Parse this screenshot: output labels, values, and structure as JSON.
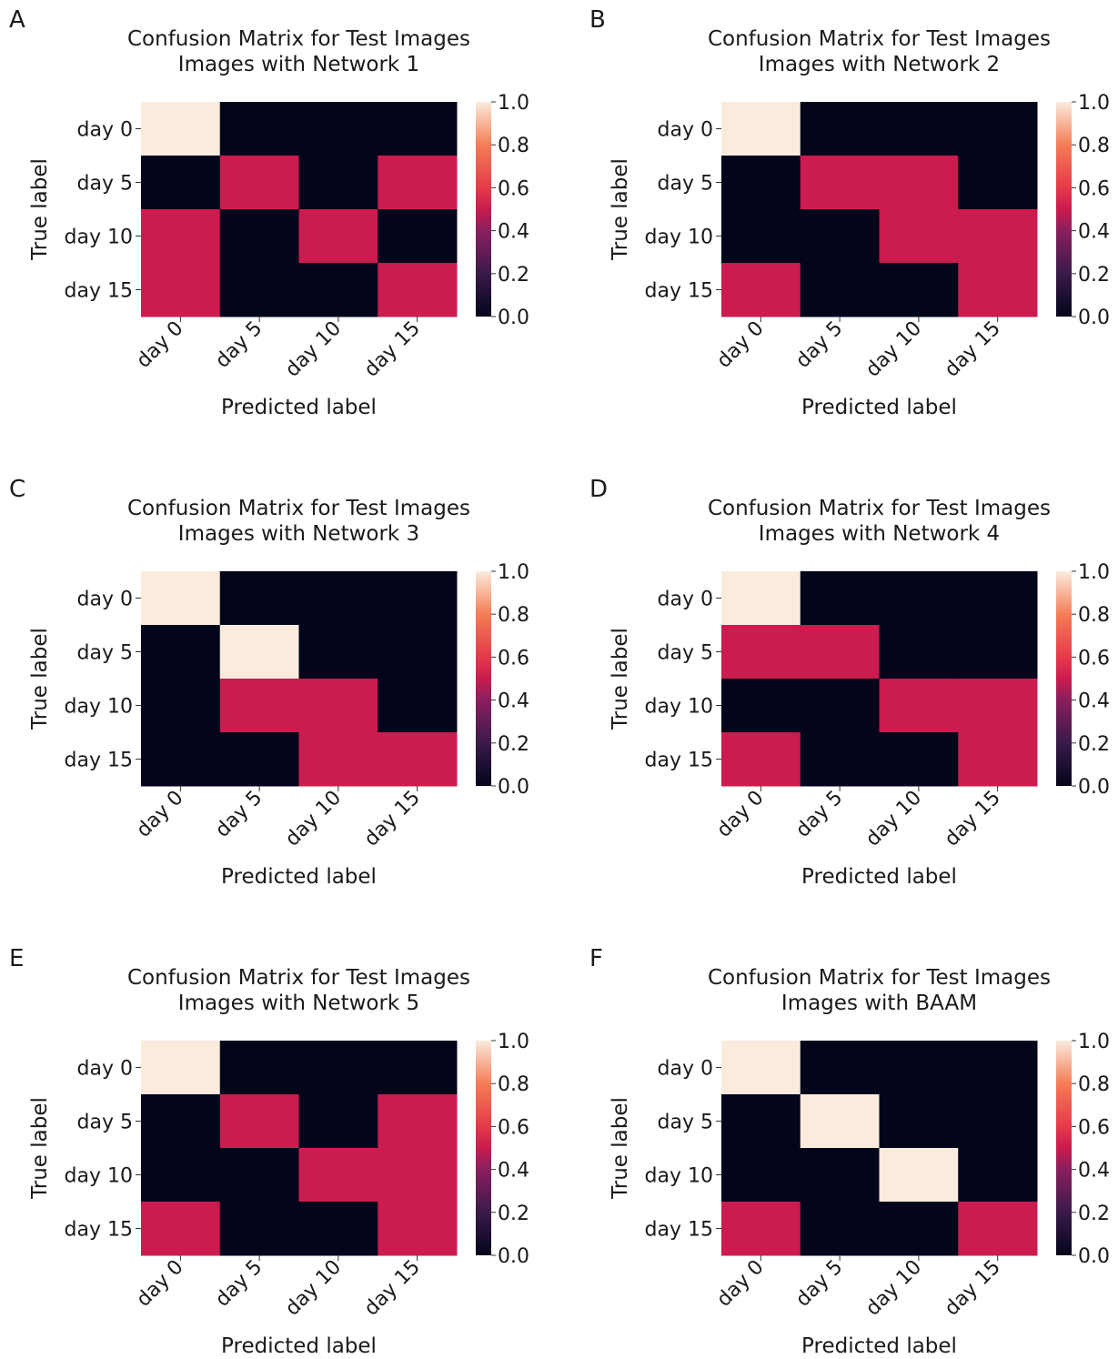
{
  "colormap": {
    "name": "rocket",
    "stops": [
      {
        "v": 0.0,
        "color": "#03051a"
      },
      {
        "v": 0.2,
        "color": "#3a1a4a"
      },
      {
        "v": 0.4,
        "color": "#8a1f5e"
      },
      {
        "v": 0.5,
        "color": "#cb1b4f"
      },
      {
        "v": 0.6,
        "color": "#e6394a"
      },
      {
        "v": 0.8,
        "color": "#f47d55"
      },
      {
        "v": 1.0,
        "color": "#faebdd"
      }
    ]
  },
  "chart_data": [
    {
      "panel": "A",
      "type": "heatmap",
      "title": [
        "Confusion Matrix for Test Images",
        "Images with Network 1"
      ],
      "xlabel": "Predicted label",
      "ylabel": "True label",
      "x_categories": [
        "day 0",
        "day 5",
        "day 10",
        "day 15"
      ],
      "y_categories": [
        "day 0",
        "day 5",
        "day 10",
        "day 15"
      ],
      "colorbar": {
        "ticks": [
          "0.0",
          "0.2",
          "0.4",
          "0.6",
          "0.8",
          "1.0"
        ],
        "range": [
          0,
          1
        ]
      },
      "values": [
        [
          1,
          0,
          0,
          0
        ],
        [
          0,
          0.5,
          0,
          0.5
        ],
        [
          0.5,
          0,
          0.5,
          0
        ],
        [
          0.5,
          0,
          0,
          0.5
        ]
      ]
    },
    {
      "panel": "B",
      "type": "heatmap",
      "title": [
        "Confusion Matrix for Test Images",
        "Images with Network 2"
      ],
      "xlabel": "Predicted label",
      "ylabel": "True label",
      "x_categories": [
        "day 0",
        "day 5",
        "day 10",
        "day 15"
      ],
      "y_categories": [
        "day 0",
        "day 5",
        "day 10",
        "day 15"
      ],
      "colorbar": {
        "ticks": [
          "0.0",
          "0.2",
          "0.4",
          "0.6",
          "0.8",
          "1.0"
        ],
        "range": [
          0,
          1
        ]
      },
      "values": [
        [
          1,
          0,
          0,
          0
        ],
        [
          0,
          0.5,
          0.5,
          0
        ],
        [
          0,
          0,
          0.5,
          0.5
        ],
        [
          0.5,
          0,
          0,
          0.5
        ]
      ]
    },
    {
      "panel": "C",
      "type": "heatmap",
      "title": [
        "Confusion Matrix for Test Images",
        "Images with Network 3"
      ],
      "xlabel": "Predicted label",
      "ylabel": "True label",
      "x_categories": [
        "day 0",
        "day 5",
        "day 10",
        "day 15"
      ],
      "y_categories": [
        "day 0",
        "day 5",
        "day 10",
        "day 15"
      ],
      "colorbar": {
        "ticks": [
          "0.0",
          "0.2",
          "0.4",
          "0.6",
          "0.8",
          "1.0"
        ],
        "range": [
          0,
          1
        ]
      },
      "values": [
        [
          1,
          0,
          0,
          0
        ],
        [
          0,
          1,
          0,
          0
        ],
        [
          0,
          0.5,
          0.5,
          0
        ],
        [
          0,
          0,
          0.5,
          0.5
        ]
      ]
    },
    {
      "panel": "D",
      "type": "heatmap",
      "title": [
        "Confusion Matrix for Test Images",
        "Images with Network 4"
      ],
      "xlabel": "Predicted label",
      "ylabel": "True label",
      "x_categories": [
        "day 0",
        "day 5",
        "day 10",
        "day 15"
      ],
      "y_categories": [
        "day 0",
        "day 5",
        "day 10",
        "day 15"
      ],
      "colorbar": {
        "ticks": [
          "0.0",
          "0.2",
          "0.4",
          "0.6",
          "0.8",
          "1.0"
        ],
        "range": [
          0,
          1
        ]
      },
      "values": [
        [
          1,
          0,
          0,
          0
        ],
        [
          0.5,
          0.5,
          0,
          0
        ],
        [
          0,
          0,
          0.5,
          0.5
        ],
        [
          0.5,
          0,
          0,
          0.5
        ]
      ]
    },
    {
      "panel": "E",
      "type": "heatmap",
      "title": [
        "Confusion Matrix for Test Images",
        "Images with Network 5"
      ],
      "xlabel": "Predicted label",
      "ylabel": "True label",
      "x_categories": [
        "day 0",
        "day 5",
        "day 10",
        "day 15"
      ],
      "y_categories": [
        "day 0",
        "day 5",
        "day 10",
        "day 15"
      ],
      "colorbar": {
        "ticks": [
          "0.0",
          "0.2",
          "0.4",
          "0.6",
          "0.8",
          "1.0"
        ],
        "range": [
          0,
          1
        ]
      },
      "values": [
        [
          1,
          0,
          0,
          0
        ],
        [
          0,
          0.5,
          0,
          0.5
        ],
        [
          0,
          0,
          0.5,
          0.5
        ],
        [
          0.5,
          0,
          0,
          0.5
        ]
      ]
    },
    {
      "panel": "F",
      "type": "heatmap",
      "title": [
        "Confusion Matrix for Test Images",
        "Images with BAAM"
      ],
      "xlabel": "Predicted label",
      "ylabel": "True label",
      "x_categories": [
        "day 0",
        "day 5",
        "day 10",
        "day 15"
      ],
      "y_categories": [
        "day 0",
        "day 5",
        "day 10",
        "day 15"
      ],
      "colorbar": {
        "ticks": [
          "0.0",
          "0.2",
          "0.4",
          "0.6",
          "0.8",
          "1.0"
        ],
        "range": [
          0,
          1
        ]
      },
      "values": [
        [
          1,
          0,
          0,
          0
        ],
        [
          0,
          1,
          0,
          0
        ],
        [
          0,
          0,
          1,
          0
        ],
        [
          0.5,
          0,
          0,
          0.5
        ]
      ]
    }
  ]
}
